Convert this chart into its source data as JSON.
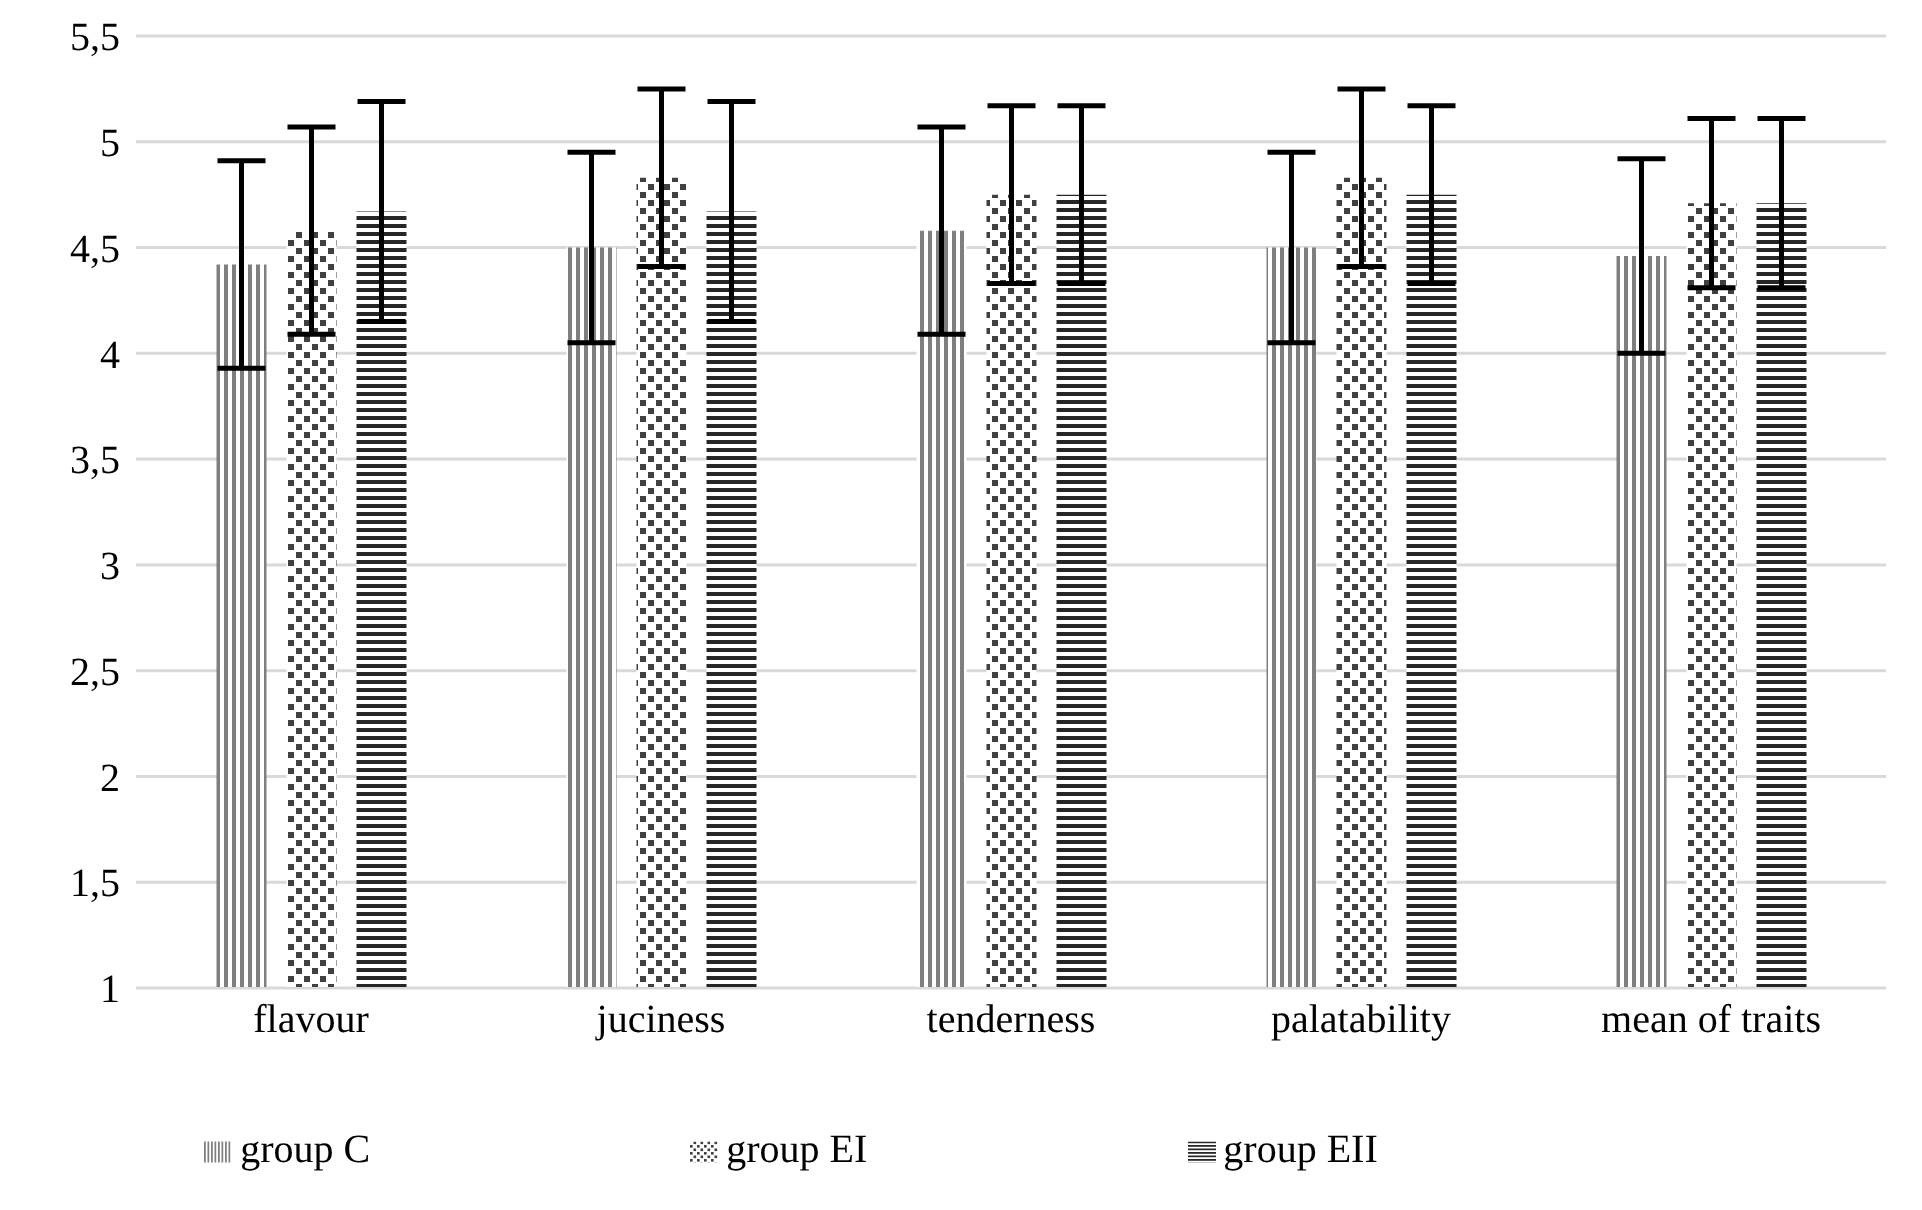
{
  "chart_data": {
    "type": "bar",
    "categories": [
      "flavour",
      "juciness",
      "tenderness",
      "palatability",
      "mean of traits"
    ],
    "series": [
      {
        "name": "group C",
        "color": "#7f7f7f",
        "values": [
          4.42,
          4.5,
          4.58,
          4.5,
          4.46
        ],
        "errors": [
          0.49,
          0.45,
          0.49,
          0.45,
          0.46
        ]
      },
      {
        "name": "group EI",
        "color": "#404040",
        "values": [
          4.58,
          4.83,
          4.75,
          4.83,
          4.71
        ],
        "errors": [
          0.49,
          0.42,
          0.42,
          0.42,
          0.4
        ]
      },
      {
        "name": "group EII",
        "color": "#262626",
        "values": [
          4.67,
          4.67,
          4.75,
          4.75,
          4.71
        ],
        "errors": [
          0.52,
          0.52,
          0.42,
          0.42,
          0.4
        ]
      }
    ],
    "ylim": [
      1,
      5.5
    ],
    "yticks": [
      {
        "value": 1,
        "label": "1"
      },
      {
        "value": 1.5,
        "label": "1,5"
      },
      {
        "value": 2,
        "label": "2"
      },
      {
        "value": 2.5,
        "label": "2,5"
      },
      {
        "value": 3,
        "label": "3"
      },
      {
        "value": 3.5,
        "label": "3,5"
      },
      {
        "value": 4,
        "label": "4"
      },
      {
        "value": 4.5,
        "label": "4,5"
      },
      {
        "value": 5,
        "label": "5"
      },
      {
        "value": 5.5,
        "label": "5,5"
      }
    ],
    "grid": "y",
    "legend": "bottom"
  }
}
